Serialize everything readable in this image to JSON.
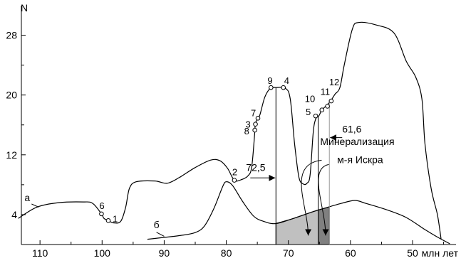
{
  "chart_data": {
    "type": "line",
    "x_label": "млн лет",
    "y_label": "N",
    "x_ticks": [
      "110",
      "100",
      "90",
      "80",
      "70",
      "60",
      "50"
    ],
    "y_ticks": [
      "4",
      "12",
      "20",
      "28"
    ],
    "x_range": [
      113,
      43
    ],
    "y_range": [
      0,
      31
    ],
    "series": [
      {
        "name": "а",
        "color": "#000000",
        "points": [
          [
            113.5,
            3.5
          ],
          [
            110.5,
            5.0
          ],
          [
            107,
            5.6
          ],
          [
            103,
            5.7
          ],
          [
            101.5,
            5.5
          ],
          [
            100.1,
            4.1
          ],
          [
            99.7,
            3.5
          ],
          [
            99.0,
            3.2
          ],
          [
            98.2,
            2.9
          ],
          [
            97.0,
            3.1
          ],
          [
            96.2,
            5.0
          ],
          [
            95.6,
            7.5
          ],
          [
            94.5,
            8.4
          ],
          [
            91.5,
            8.5
          ],
          [
            89.5,
            8.2
          ],
          [
            87.5,
            9.0
          ],
          [
            85.0,
            10.3
          ],
          [
            82.5,
            11.3
          ],
          [
            81.0,
            11.2
          ],
          [
            79.8,
            10.2
          ],
          [
            78.7,
            8.6
          ],
          [
            77.5,
            8.7
          ],
          [
            76.5,
            9.2
          ],
          [
            75.9,
            10.4
          ],
          [
            75.4,
            15.2
          ],
          [
            75.4,
            16.1
          ],
          [
            75.1,
            16.6
          ],
          [
            74.6,
            17.3
          ],
          [
            73.8,
            19.7
          ],
          [
            72.9,
            20.9
          ],
          [
            72.0,
            21.0
          ],
          [
            70.5,
            20.9
          ],
          [
            69.7,
            19.5
          ],
          [
            69.0,
            13.5
          ],
          [
            68.3,
            9.0
          ],
          [
            67.6,
            8.1
          ],
          [
            67.0,
            8.2
          ],
          [
            66.5,
            9.3
          ],
          [
            66.0,
            15.0
          ],
          [
            65.6,
            16.8
          ],
          [
            65.1,
            17.2
          ],
          [
            64.6,
            18.0
          ],
          [
            64.0,
            18.5
          ],
          [
            63.2,
            19.2
          ],
          [
            62.5,
            20.1
          ],
          [
            61.7,
            21.0
          ],
          [
            61.0,
            24.0
          ],
          [
            59.7,
            28.8
          ],
          [
            58.7,
            29.7
          ],
          [
            56.0,
            29.4
          ],
          [
            53.0,
            28.3
          ],
          [
            51.0,
            24.5
          ],
          [
            49.5,
            22.4
          ],
          [
            48.5,
            19.5
          ],
          [
            48.0,
            13.5
          ],
          [
            47.0,
            7.5
          ],
          [
            46.0,
            4.0
          ],
          [
            45.4,
            0.7
          ]
        ]
      },
      {
        "name": "б",
        "color": "#000000",
        "points": [
          [
            92.7,
            0.7
          ],
          [
            87.5,
            1.2
          ],
          [
            85.0,
            1.6
          ],
          [
            83.5,
            2.5
          ],
          [
            82.0,
            4.8
          ],
          [
            80.6,
            7.7
          ],
          [
            80.0,
            8.4
          ],
          [
            79.0,
            7.9
          ],
          [
            77.4,
            5.8
          ],
          [
            75.6,
            3.8
          ],
          [
            74.0,
            3.1
          ],
          [
            72.1,
            2.8
          ],
          [
            69.5,
            3.4
          ],
          [
            66.0,
            4.4
          ],
          [
            64.0,
            4.9
          ],
          [
            61.5,
            5.5
          ],
          [
            59.3,
            5.9
          ],
          [
            57.5,
            5.5
          ],
          [
            54.0,
            4.6
          ],
          [
            51.0,
            3.6
          ],
          [
            48.0,
            2.0
          ],
          [
            46.0,
            1.0
          ],
          [
            44.0,
            0.1
          ]
        ]
      }
    ],
    "points": [
      {
        "label": "1",
        "x": 99.0,
        "y": 3.2,
        "dx": 6,
        "dy": 2
      },
      {
        "label": "2",
        "x": 78.7,
        "y": 8.6,
        "dx": -3,
        "dy": -7
      },
      {
        "label": "3",
        "x": 75.3,
        "y": 16.1,
        "dx": -14,
        "dy": 5
      },
      {
        "label": "4",
        "x": 70.8,
        "y": 21.0,
        "dx": 1,
        "dy": -5
      },
      {
        "label": "5",
        "x": 65.6,
        "y": 17.2,
        "dx": -14,
        "dy": -1
      },
      {
        "label": "6",
        "x": 100.1,
        "y": 4.1,
        "dx": -3,
        "dy": -7
      },
      {
        "label": "7",
        "x": 74.9,
        "y": 16.9,
        "dx": -10,
        "dy": -3
      },
      {
        "label": "8",
        "x": 75.4,
        "y": 15.3,
        "dx": -15,
        "dy": 6
      },
      {
        "label": "9",
        "x": 72.8,
        "y": 21.0,
        "dx": -5,
        "dy": -5
      },
      {
        "label": "10",
        "x": 64.6,
        "y": 18.0,
        "dx": -24,
        "dy": -11
      },
      {
        "label": "11",
        "x": 63.7,
        "y": 18.5,
        "dx": -10,
        "dy": -16
      },
      {
        "label": "12",
        "x": 63.1,
        "y": 19.2,
        "dx": -3,
        "dy": -22
      }
    ],
    "series_labels": [
      {
        "text": "а",
        "x": 112.5,
        "y": 5.8
      },
      {
        "text": "б",
        "x": 91.7,
        "y": 2.2
      }
    ],
    "verticals": [
      72.0,
      65.2,
      63.4
    ],
    "shaded_regions": [
      {
        "from": 72.0,
        "to": 65.2,
        "color": "#c0c0c0"
      },
      {
        "from": 65.2,
        "to": 63.4,
        "color": "#808080"
      }
    ],
    "annotations": [
      {
        "text": "72,5",
        "x_at": 72.0,
        "y": 9.1
      },
      {
        "text": "61,6",
        "x_at": 63.4,
        "y": 14.4
      },
      {
        "text": "Минерализация",
        "x": 58.9,
        "y": 13.3
      },
      {
        "text": "м-я Искра",
        "x": 58.9,
        "y": 10.9
      }
    ]
  }
}
